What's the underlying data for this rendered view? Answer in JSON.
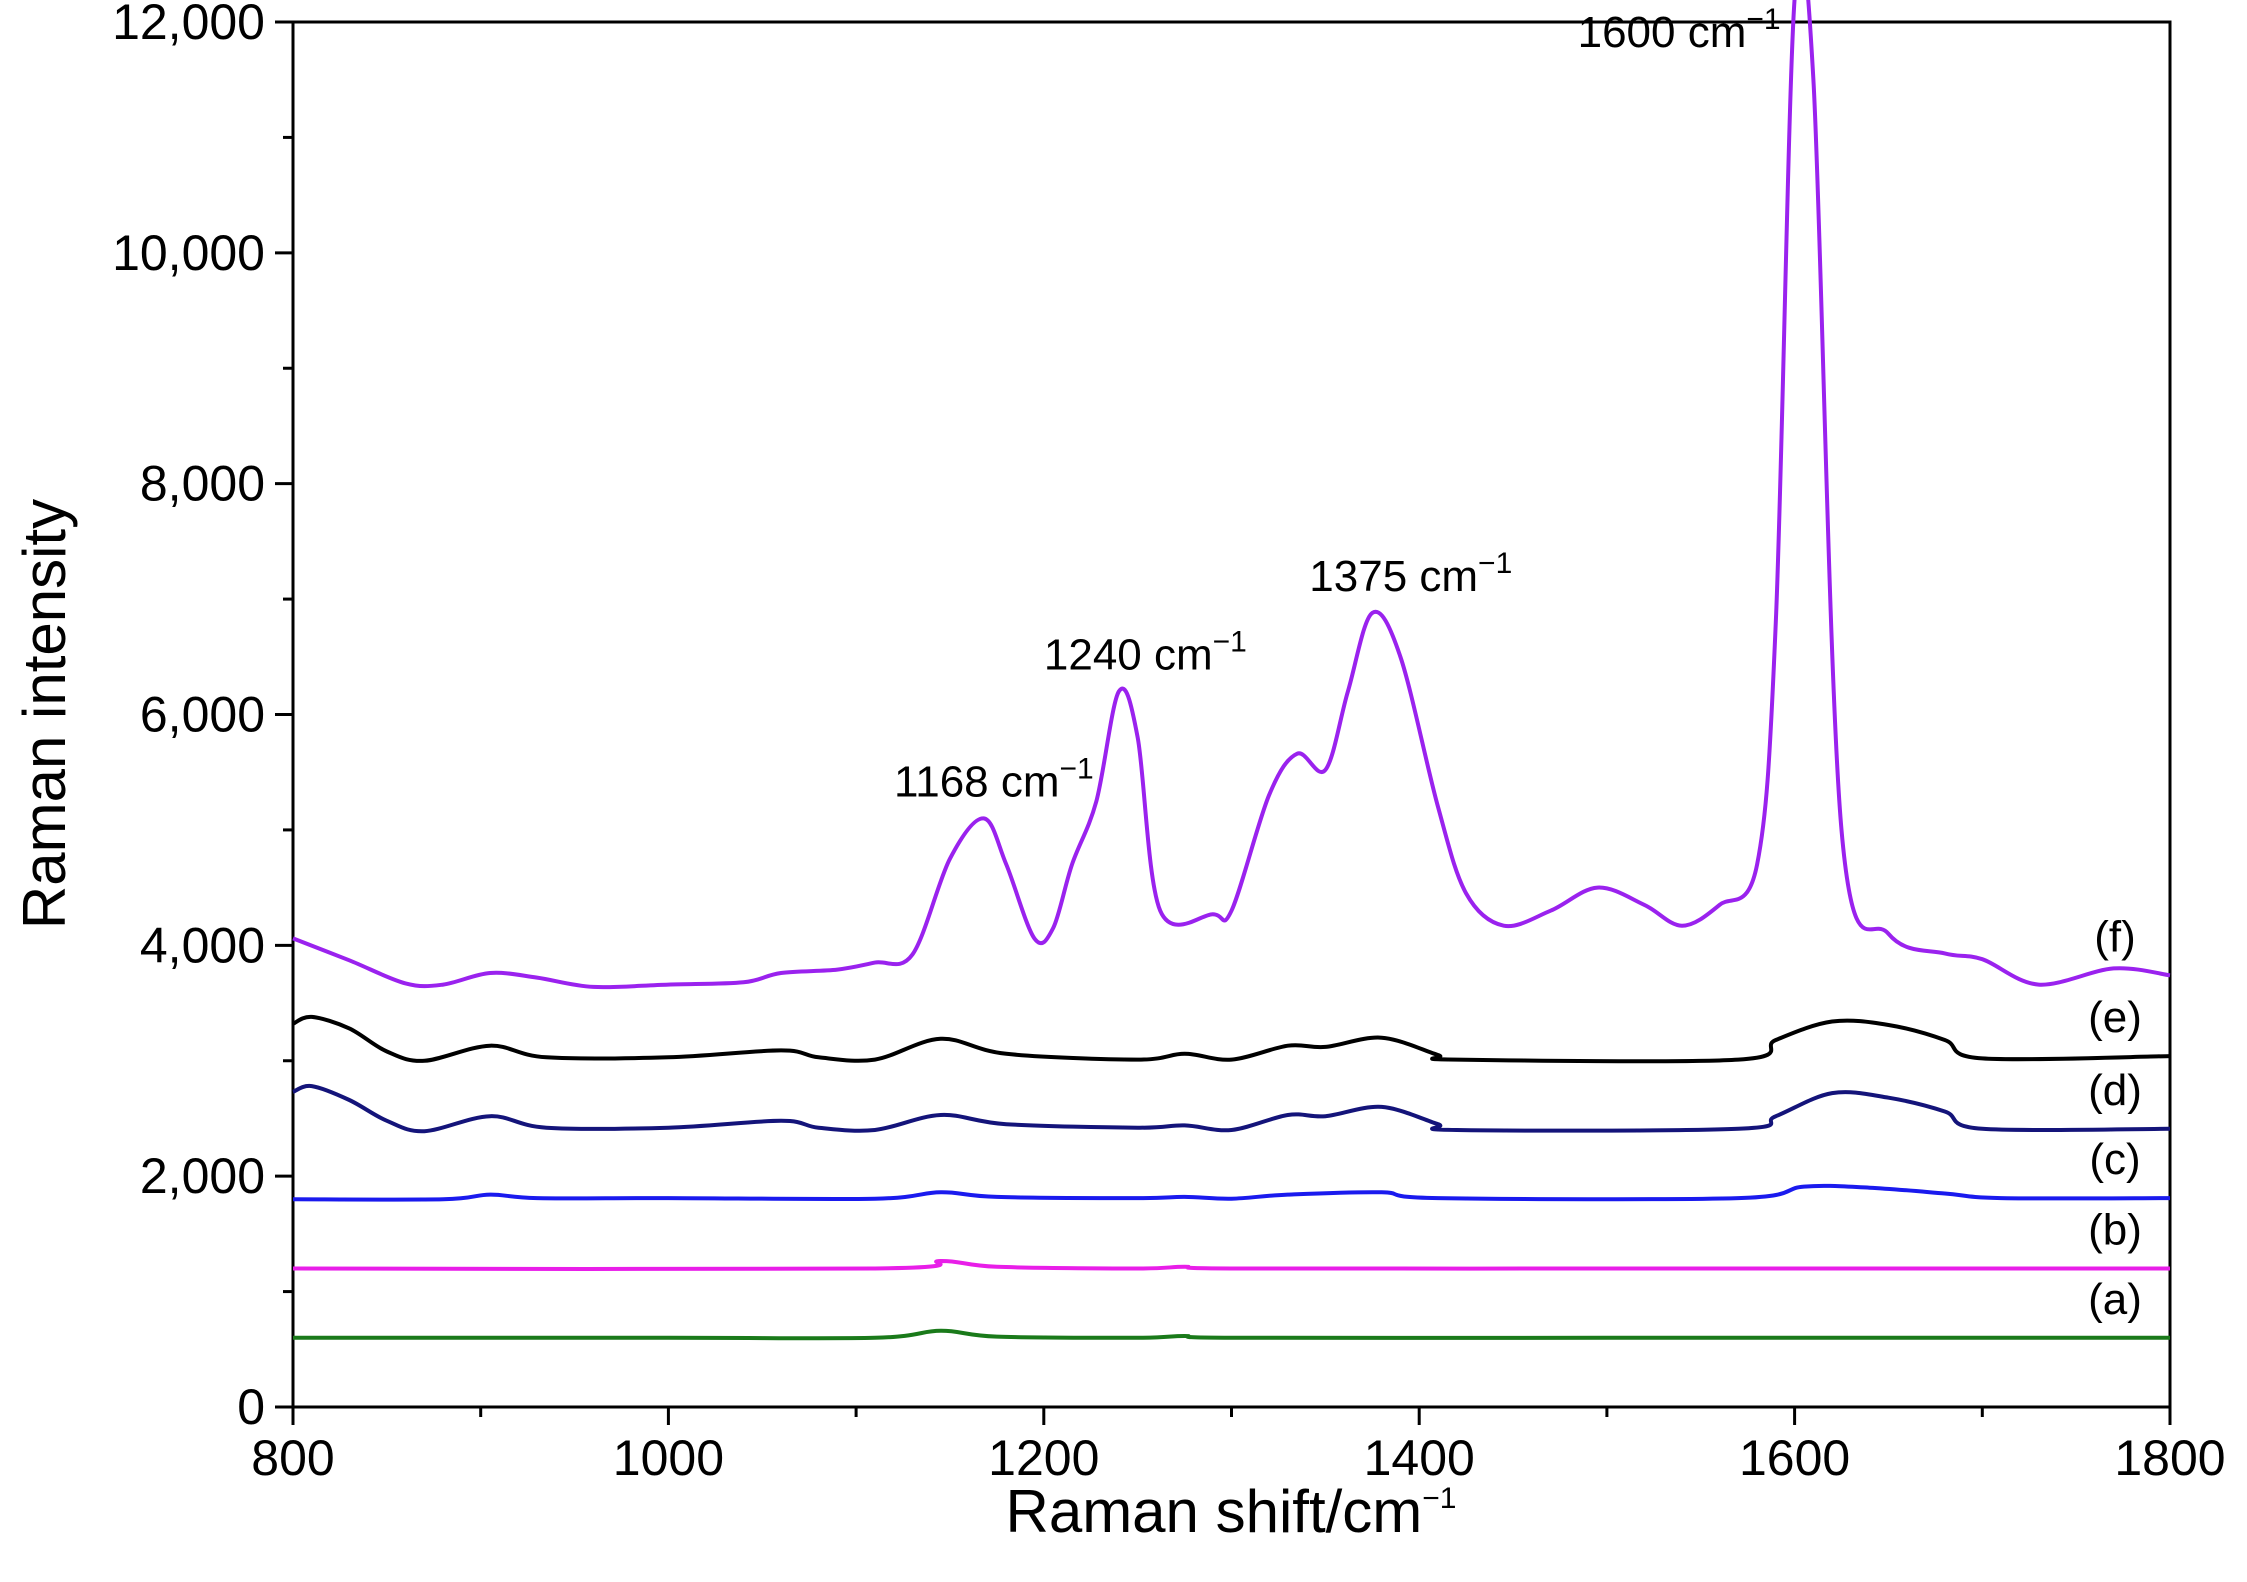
{
  "chart_data": {
    "type": "line",
    "title": "",
    "xlabel": "Raman shift/cm",
    "xlabel_sup": "−1",
    "ylabel": "Raman intensity",
    "xlim": [
      800,
      1800
    ],
    "ylim": [
      0,
      12000
    ],
    "x_ticks": [
      800,
      1000,
      1200,
      1400,
      1600,
      1800
    ],
    "x_tick_labels": [
      "800",
      "1000",
      "1200",
      "1400",
      "1600",
      "1800"
    ],
    "y_ticks": [
      0,
      2000,
      4000,
      6000,
      8000,
      10000,
      12000
    ],
    "y_tick_labels": [
      "0",
      "2,000",
      "4,000",
      "6,000",
      "8,000",
      "10,000",
      "12,000"
    ],
    "grid": false,
    "series": [
      {
        "name": "(a)",
        "color": "#1a7a1a",
        "points": [
          [
            800,
            600
          ],
          [
            1000,
            600
          ],
          [
            1110,
            600
          ],
          [
            1145,
            660
          ],
          [
            1175,
            610
          ],
          [
            1250,
            600
          ],
          [
            1275,
            615
          ],
          [
            1300,
            600
          ],
          [
            1500,
            600
          ],
          [
            1700,
            600
          ],
          [
            1800,
            600
          ]
        ]
      },
      {
        "name": "(b)",
        "color": "#e81ee8",
        "points": [
          [
            800,
            1200
          ],
          [
            1110,
            1200
          ],
          [
            1145,
            1265
          ],
          [
            1175,
            1215
          ],
          [
            1250,
            1200
          ],
          [
            1275,
            1215
          ],
          [
            1300,
            1200
          ],
          [
            1500,
            1200
          ],
          [
            1700,
            1200
          ],
          [
            1800,
            1200
          ]
        ]
      },
      {
        "name": "(c)",
        "color": "#1a1aee",
        "points": [
          [
            800,
            1800
          ],
          [
            880,
            1800
          ],
          [
            905,
            1840
          ],
          [
            930,
            1810
          ],
          [
            1000,
            1810
          ],
          [
            1110,
            1805
          ],
          [
            1145,
            1860
          ],
          [
            1175,
            1820
          ],
          [
            1250,
            1810
          ],
          [
            1275,
            1820
          ],
          [
            1300,
            1805
          ],
          [
            1330,
            1840
          ],
          [
            1380,
            1860
          ],
          [
            1410,
            1810
          ],
          [
            1570,
            1810
          ],
          [
            1605,
            1910
          ],
          [
            1640,
            1900
          ],
          [
            1680,
            1850
          ],
          [
            1710,
            1810
          ],
          [
            1800,
            1810
          ]
        ]
      },
      {
        "name": "(d)",
        "color": "#14147a",
        "points": [
          [
            800,
            2730
          ],
          [
            810,
            2780
          ],
          [
            830,
            2660
          ],
          [
            850,
            2480
          ],
          [
            870,
            2390
          ],
          [
            905,
            2520
          ],
          [
            935,
            2420
          ],
          [
            1000,
            2420
          ],
          [
            1060,
            2480
          ],
          [
            1080,
            2420
          ],
          [
            1110,
            2400
          ],
          [
            1145,
            2530
          ],
          [
            1180,
            2450
          ],
          [
            1250,
            2420
          ],
          [
            1275,
            2440
          ],
          [
            1300,
            2400
          ],
          [
            1330,
            2530
          ],
          [
            1350,
            2520
          ],
          [
            1380,
            2600
          ],
          [
            1410,
            2450
          ],
          [
            1420,
            2400
          ],
          [
            1570,
            2410
          ],
          [
            1590,
            2520
          ],
          [
            1620,
            2720
          ],
          [
            1650,
            2680
          ],
          [
            1680,
            2560
          ],
          [
            1700,
            2410
          ],
          [
            1800,
            2410
          ]
        ]
      },
      {
        "name": "(e)",
        "color": "#000000",
        "points": [
          [
            800,
            3320
          ],
          [
            810,
            3380
          ],
          [
            830,
            3280
          ],
          [
            850,
            3080
          ],
          [
            870,
            3000
          ],
          [
            905,
            3130
          ],
          [
            935,
            3030
          ],
          [
            1000,
            3030
          ],
          [
            1060,
            3090
          ],
          [
            1080,
            3030
          ],
          [
            1110,
            3010
          ],
          [
            1145,
            3190
          ],
          [
            1180,
            3060
          ],
          [
            1250,
            3010
          ],
          [
            1275,
            3060
          ],
          [
            1300,
            3010
          ],
          [
            1330,
            3130
          ],
          [
            1350,
            3120
          ],
          [
            1380,
            3200
          ],
          [
            1410,
            3050
          ],
          [
            1420,
            3010
          ],
          [
            1570,
            3010
          ],
          [
            1590,
            3180
          ],
          [
            1620,
            3340
          ],
          [
            1650,
            3310
          ],
          [
            1680,
            3180
          ],
          [
            1700,
            3020
          ],
          [
            1800,
            3040
          ]
        ]
      },
      {
        "name": "(f)",
        "color": "#9a22ee",
        "points": [
          [
            800,
            4060
          ],
          [
            830,
            3870
          ],
          [
            860,
            3670
          ],
          [
            880,
            3660
          ],
          [
            905,
            3760
          ],
          [
            930,
            3720
          ],
          [
            960,
            3640
          ],
          [
            1000,
            3660
          ],
          [
            1040,
            3680
          ],
          [
            1060,
            3760
          ],
          [
            1090,
            3790
          ],
          [
            1110,
            3850
          ],
          [
            1130,
            3920
          ],
          [
            1150,
            4750
          ],
          [
            1168,
            5100
          ],
          [
            1180,
            4700
          ],
          [
            1195,
            4060
          ],
          [
            1205,
            4150
          ],
          [
            1215,
            4700
          ],
          [
            1228,
            5250
          ],
          [
            1240,
            6200
          ],
          [
            1250,
            5800
          ],
          [
            1262,
            4300
          ],
          [
            1290,
            4270
          ],
          [
            1300,
            4300
          ],
          [
            1320,
            5300
          ],
          [
            1335,
            5660
          ],
          [
            1350,
            5520
          ],
          [
            1362,
            6200
          ],
          [
            1375,
            6880
          ],
          [
            1390,
            6500
          ],
          [
            1410,
            5200
          ],
          [
            1425,
            4450
          ],
          [
            1445,
            4170
          ],
          [
            1470,
            4300
          ],
          [
            1495,
            4500
          ],
          [
            1520,
            4350
          ],
          [
            1540,
            4170
          ],
          [
            1560,
            4350
          ],
          [
            1580,
            4700
          ],
          [
            1590,
            6800
          ],
          [
            1600,
            12200
          ],
          [
            1610,
            11500
          ],
          [
            1625,
            5000
          ],
          [
            1650,
            4100
          ],
          [
            1680,
            3930
          ],
          [
            1700,
            3880
          ],
          [
            1730,
            3660
          ],
          [
            1770,
            3800
          ],
          [
            1800,
            3740
          ]
        ]
      }
    ],
    "annotations": [
      {
        "text": "1168 cm",
        "sup": "−1",
        "x": 1168,
        "y": 5100
      },
      {
        "text": "1240 cm",
        "sup": "−1",
        "x": 1240,
        "y": 6200
      },
      {
        "text": "1375 cm",
        "sup": "−1",
        "x": 1375,
        "y": 6880
      },
      {
        "text": "1600 cm",
        "sup": "−1",
        "x": 1600,
        "y": 12200
      }
    ]
  }
}
